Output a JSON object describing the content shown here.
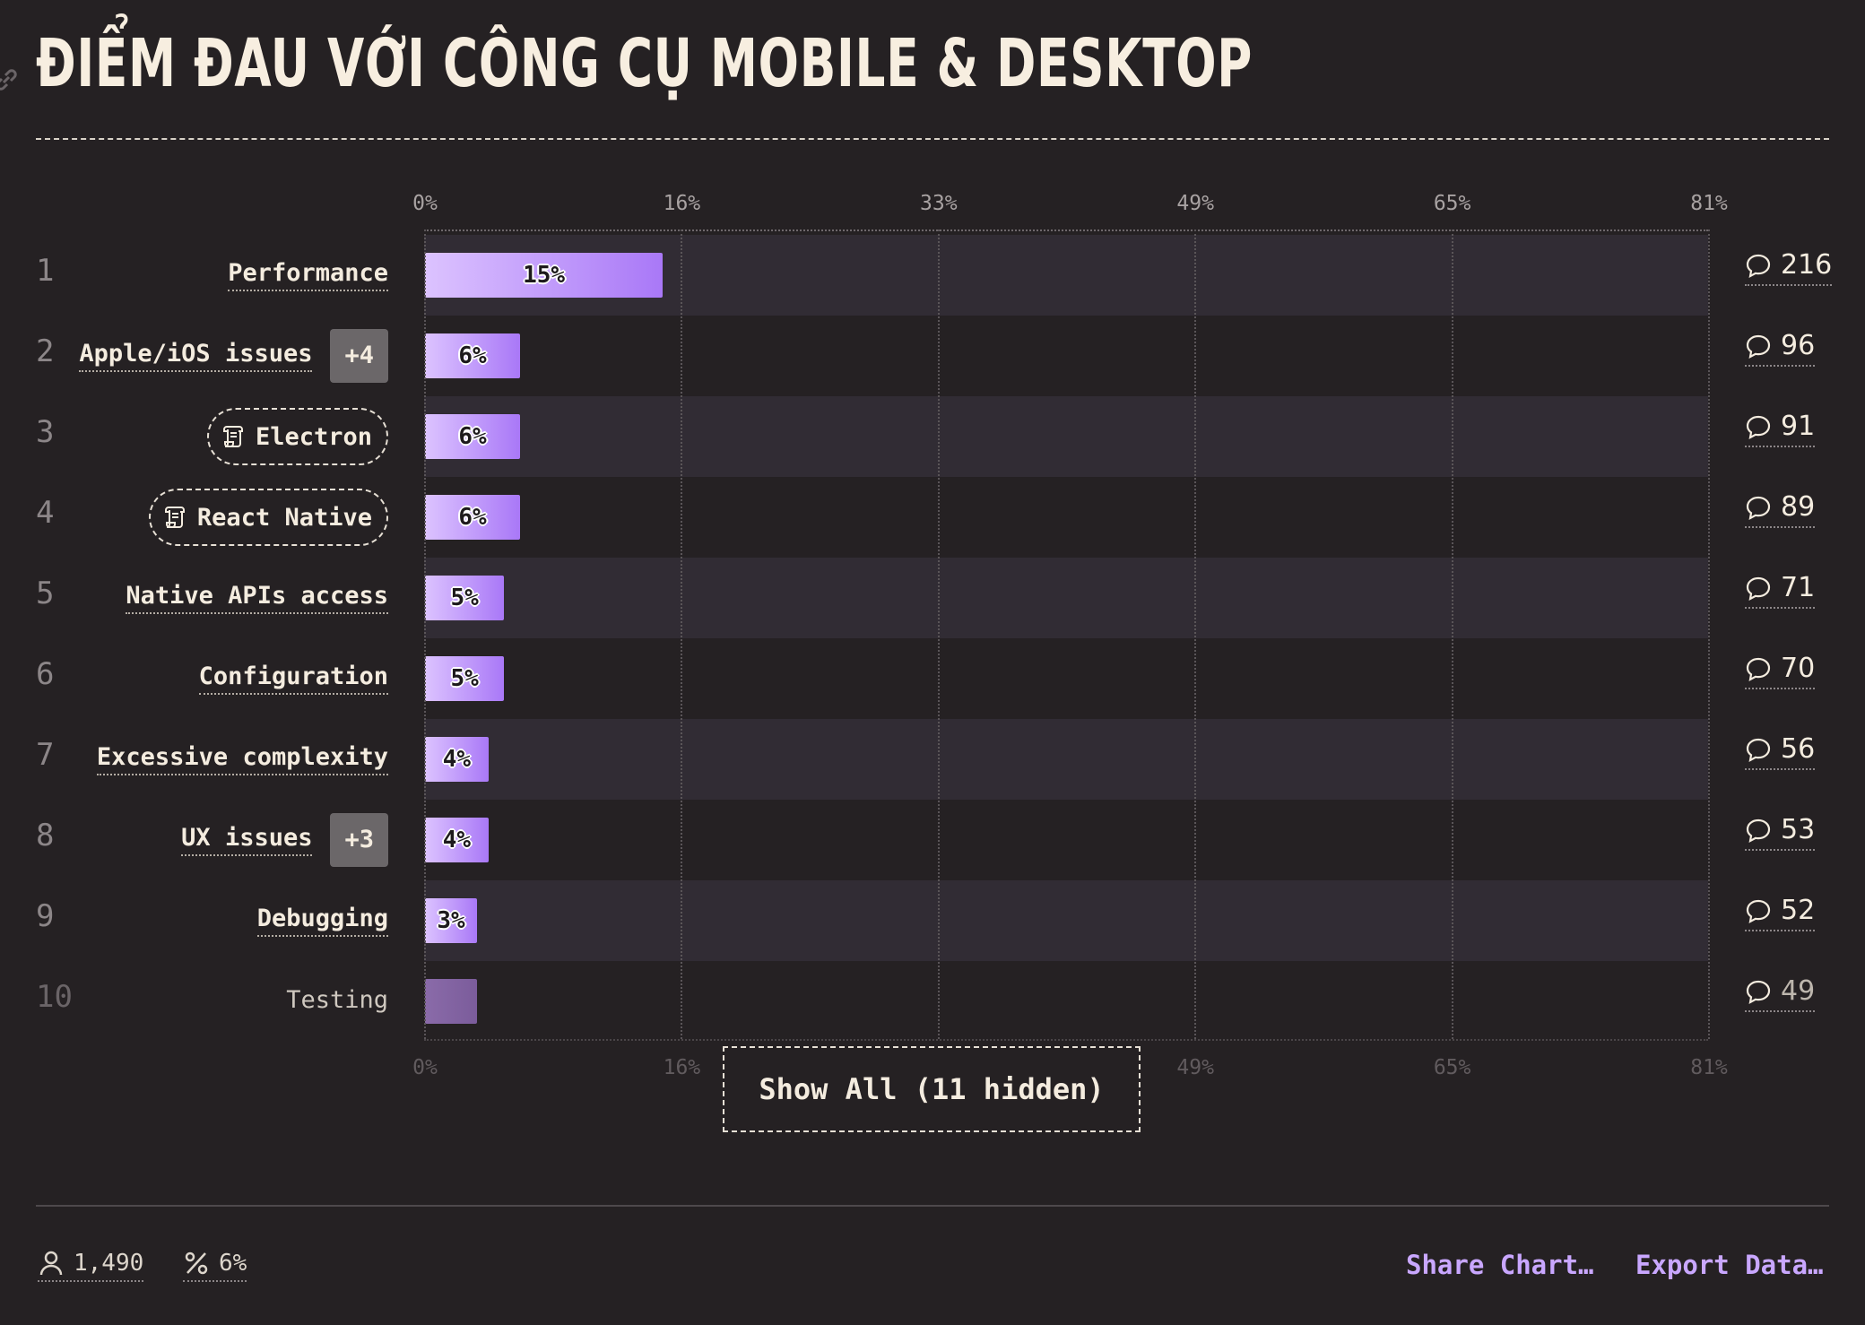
{
  "title": "ĐIỂM ĐAU VỚI CÔNG CỤ MOBILE & DESKTOP",
  "icons": {
    "title": "link-icon",
    "comment": "comment-icon",
    "tool": "scroll-icon",
    "respondents": "person-icon",
    "percent": "percent-icon"
  },
  "colors": {
    "bar_start": "#dcc3ff",
    "bar_end": "#a978f7",
    "background": "#252123",
    "accent": "#c9a7ff"
  },
  "chart_data": {
    "type": "bar",
    "orientation": "horizontal",
    "title": "ĐIỂM ĐAU VỚI CÔNG CỤ MOBILE & DESKTOP",
    "xlabel": "",
    "ylabel": "",
    "xlim": [
      0,
      81
    ],
    "x_ticks": [
      "0%",
      "16%",
      "33%",
      "49%",
      "65%",
      "81%"
    ],
    "grid": true,
    "categories": [
      "Performance",
      "Apple/iOS issues",
      "Electron",
      "React Native",
      "Native APIs access",
      "Configuration",
      "Excessive complexity",
      "UX issues",
      "Debugging",
      "Testing"
    ],
    "ranks": [
      "1",
      "2",
      "3",
      "4",
      "5",
      "6",
      "7",
      "8",
      "9",
      "10"
    ],
    "values": [
      15,
      6,
      6,
      6,
      5,
      5,
      4,
      4,
      3,
      3
    ],
    "value_labels": [
      "15%",
      "6%",
      "6%",
      "6%",
      "5%",
      "5%",
      "4%",
      "4%",
      "3%",
      ""
    ],
    "comment_counts": [
      "216",
      "96",
      "91",
      "89",
      "71",
      "70",
      "56",
      "53",
      "52",
      "49"
    ],
    "badges": [
      "",
      "+4",
      "",
      "",
      "",
      "",
      "",
      "+3",
      "",
      ""
    ],
    "tool_pills": [
      false,
      false,
      true,
      true,
      false,
      false,
      false,
      false,
      false,
      false
    ]
  },
  "show_all_label": "Show All (11 hidden)",
  "footer": {
    "respondents": "1,490",
    "percent": "6%",
    "share_label": "Share Chart…",
    "export_label": "Export Data…"
  }
}
